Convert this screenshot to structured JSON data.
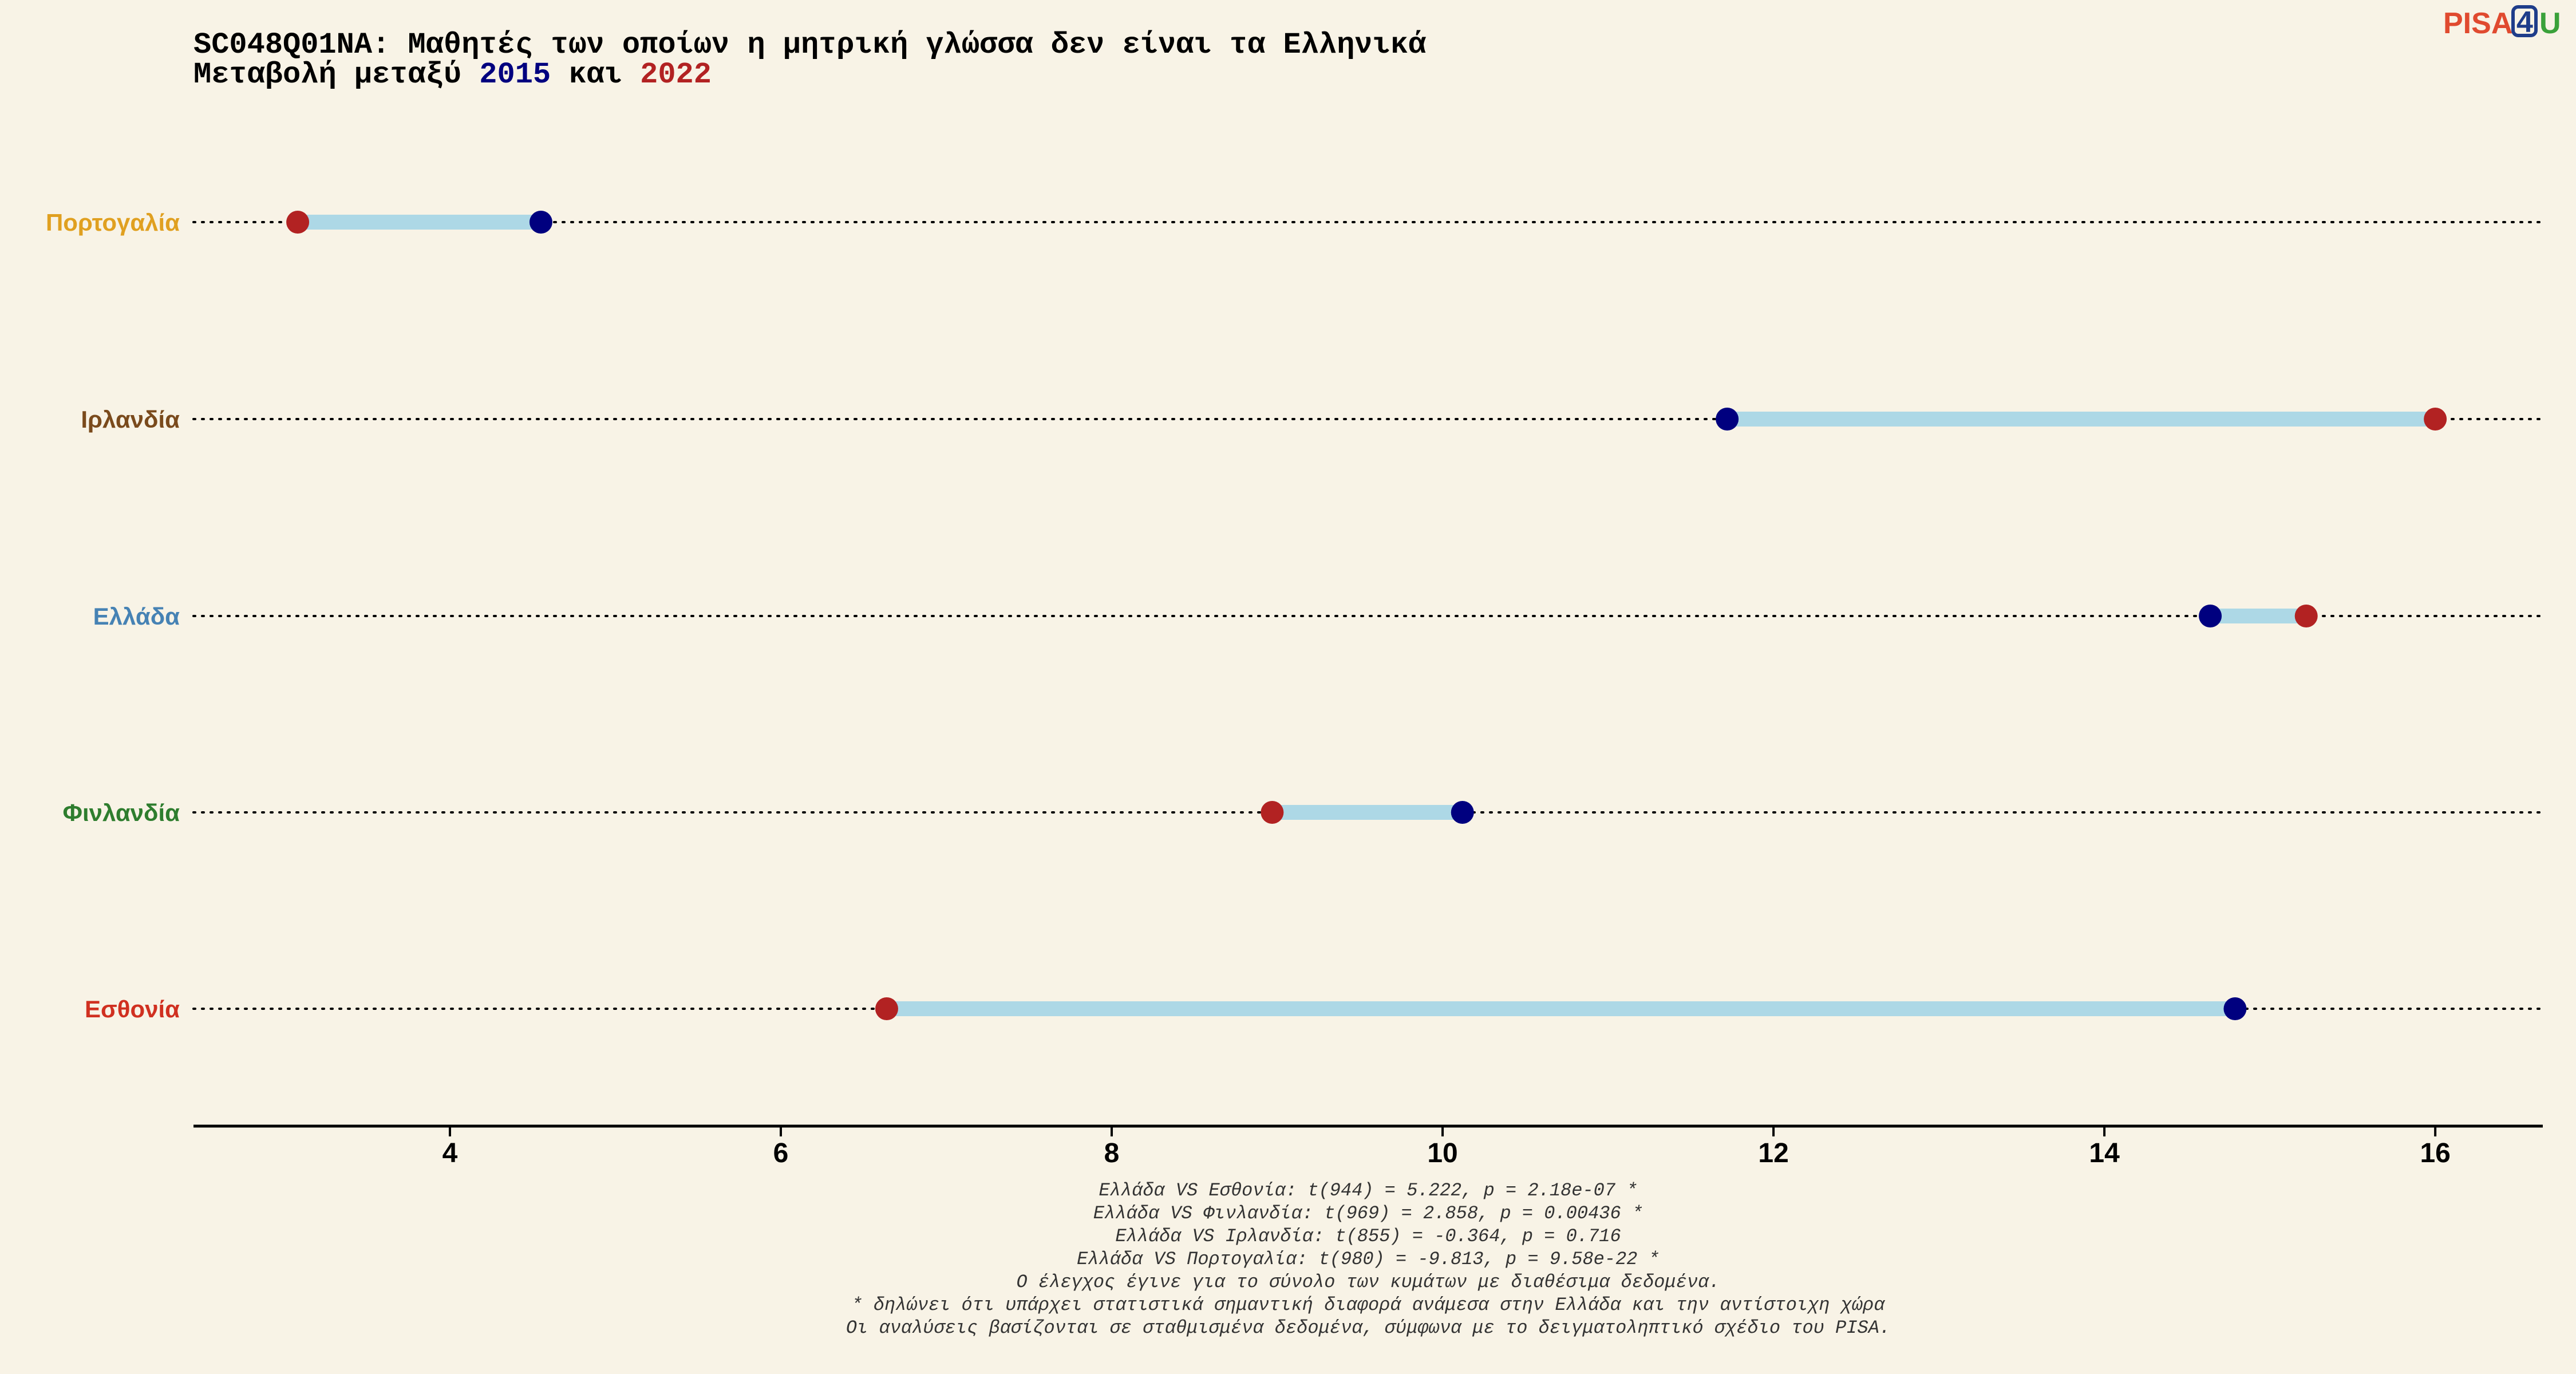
{
  "title": {
    "line1": "SC048Q01NA: Μαθητές των οποίων η μητρική γλώσσα δεν είναι τα Ελληνικά",
    "line2_prefix": "Μεταβολή μεταξύ ",
    "year_a": "2015",
    "line2_mid": " και ",
    "year_b": "2022"
  },
  "logo": {
    "text_pisa": "PISA",
    "text_four": "4",
    "text_u": "U"
  },
  "colors": {
    "background": "#f8f3e6",
    "year_2015": "#00007f",
    "year_2022": "#b22222",
    "segment": "#add8e6",
    "logo_pisa": "#e04a2f",
    "logo_four": "#1f3d8a",
    "logo_u": "#3aa13a"
  },
  "chart_data": {
    "type": "dumbbell",
    "xlim": [
      2.45,
      16.65
    ],
    "xticks": [
      4,
      6,
      8,
      10,
      12,
      14,
      16
    ],
    "grid": "dotted row guides",
    "series_names": [
      "2015",
      "2022"
    ],
    "rows": [
      {
        "country": "Πορτογαλία",
        "label_color": "#e0a020",
        "v2015": 4.55,
        "v2022": 3.08
      },
      {
        "country": "Ιρλανδία",
        "label_color": "#7a4a1c",
        "v2015": 11.72,
        "v2022": 16.0
      },
      {
        "country": "Ελλάδα",
        "label_color": "#4682b4",
        "v2015": 14.64,
        "v2022": 15.22
      },
      {
        "country": "Φινλανδία",
        "label_color": "#2e7d2e",
        "v2015": 10.12,
        "v2022": 8.97
      },
      {
        "country": "Εσθονία",
        "label_color": "#d03020",
        "v2015": 14.79,
        "v2022": 6.64
      }
    ]
  },
  "notes": [
    "Ελλάδα VS Εσθονία: t(944) = 5.222, p = 2.18e-07 *",
    "Ελλάδα VS Φινλανδία: t(969) = 2.858, p = 0.00436 *",
    "Ελλάδα VS Ιρλανδία: t(855) = -0.364, p = 0.716",
    "Ελλάδα VS Πορτογαλία: t(980) = -9.813, p = 9.58e-22 *",
    "Ο έλεγχος έγινε για το σύνολο των κυμάτων με διαθέσιμα δεδομένα.",
    "* δηλώνει ότι υπάρχει στατιστικά σημαντική διαφορά ανάμεσα στην Ελλάδα και την αντίστοιχη χώρα",
    "Οι αναλύσεις βασίζονται σε σταθμισμένα δεδομένα, σύμφωνα με το δειγματοληπτικό σχέδιο του PISA."
  ]
}
